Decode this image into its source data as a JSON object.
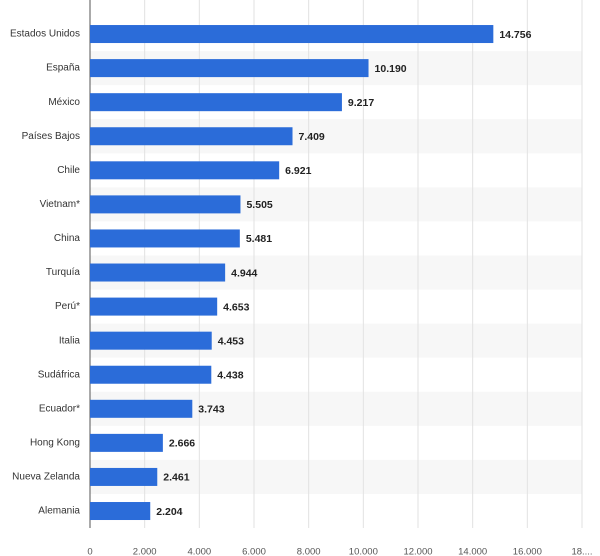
{
  "chart_data": {
    "type": "bar",
    "orientation": "horizontal",
    "categories": [
      "Estados Unidos",
      "España",
      "México",
      "Países Bajos",
      "Chile",
      "Vietnam*",
      "China",
      "Turquía",
      "Perú*",
      "Italia",
      "Sudáfrica",
      "Ecuador*",
      "Hong Kong",
      "Nueva Zelanda",
      "Alemania"
    ],
    "values": [
      14756,
      10190,
      9217,
      7409,
      6921,
      5505,
      5481,
      4944,
      4653,
      4453,
      4438,
      3743,
      2666,
      2461,
      2204
    ],
    "value_labels": [
      "14.756",
      "10.190",
      "9.217",
      "7.409",
      "6.921",
      "5.505",
      "5.481",
      "4.944",
      "4.653",
      "4.453",
      "4.438",
      "3.743",
      "2.666",
      "2.461",
      "2.204"
    ],
    "color": "#2b6cd9",
    "xlim": [
      0,
      18000
    ],
    "xticks": [
      0,
      {
        "value": 2000,
        "label": "2.000"
      },
      {
        "value": 4000,
        "label": "4.000"
      },
      {
        "value": 6000,
        "label": "6.000"
      },
      {
        "value": 8000,
        "label": "8.000"
      },
      {
        "value": 10000,
        "label": "10.000"
      },
      {
        "value": 12000,
        "label": "12.000"
      },
      {
        "value": 14000,
        "label": "14.000"
      },
      {
        "value": 16000,
        "label": "16.000"
      },
      {
        "value": 18000,
        "label": "18...."
      }
    ],
    "grid": true
  }
}
